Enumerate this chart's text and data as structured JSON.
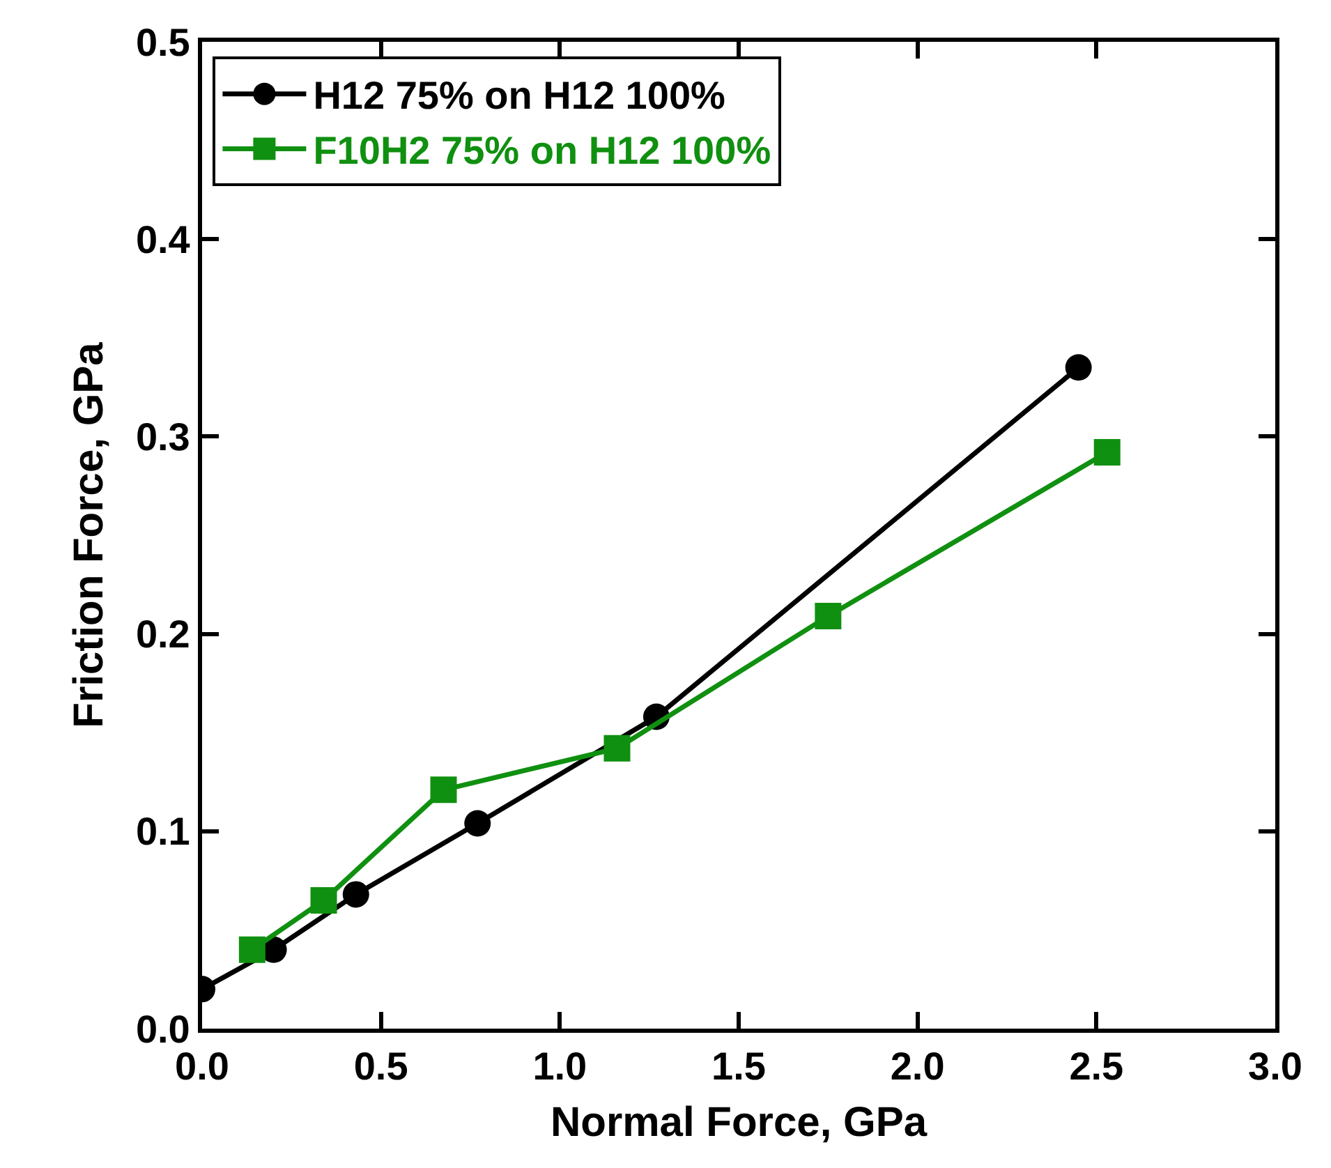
{
  "chart_data": {
    "type": "line",
    "xlabel": "Normal Force, GPa",
    "ylabel": "Friction Force, GPa",
    "xlim": [
      0,
      3
    ],
    "xticks": [
      {
        "value": 0,
        "label": "0.0"
      },
      {
        "value": 0.5,
        "label": "0.5"
      },
      {
        "value": 1,
        "label": "1.0"
      },
      {
        "value": 1.5,
        "label": "1.5"
      },
      {
        "value": 2,
        "label": "2.0"
      },
      {
        "value": 2.5,
        "label": "2.5"
      },
      {
        "value": 3,
        "label": "3.0"
      }
    ],
    "ylim": [
      0,
      0.5
    ],
    "yticks": [
      {
        "value": 0,
        "label": "0.0"
      },
      0.1,
      0.2,
      0.3,
      0.4,
      0.5
    ],
    "legend": "top left",
    "line_style": "solid",
    "series": [
      {
        "name": "H12 75% on H12 100%",
        "color": "#000000",
        "marker": "circle",
        "x": [
          0.0,
          0.2,
          0.43,
          0.77,
          1.27,
          2.45
        ],
        "values": [
          0.02,
          0.04,
          0.068,
          0.104,
          0.158,
          0.335
        ]
      },
      {
        "name": "F10H2 75% on H12 100%",
        "color": "#109010",
        "marker": "square",
        "x": [
          0.14,
          0.34,
          0.675,
          1.16,
          1.75,
          2.53
        ],
        "values": [
          0.04,
          0.065,
          0.121,
          0.142,
          0.209,
          0.292
        ]
      }
    ]
  }
}
